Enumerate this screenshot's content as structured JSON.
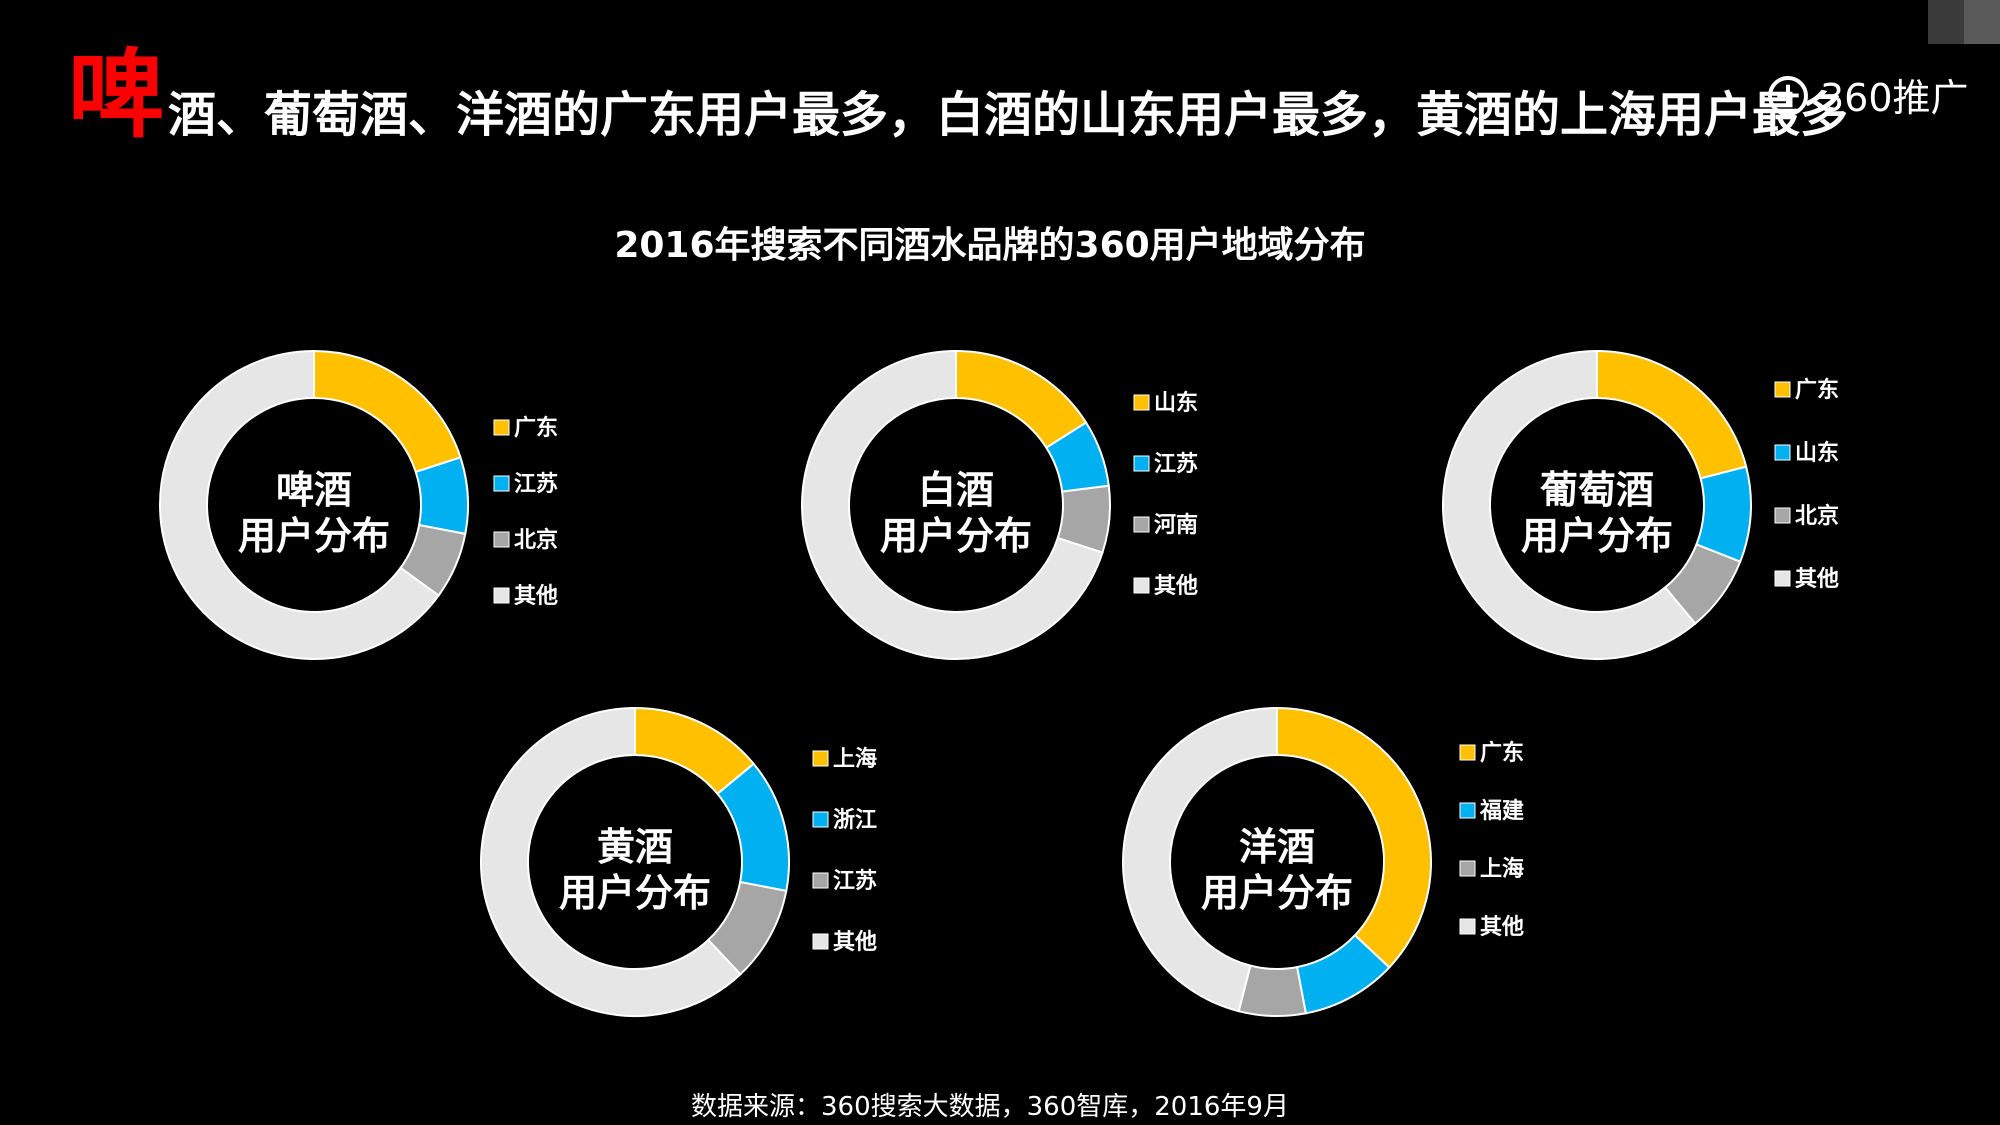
{
  "headline": {
    "first_char": "啤",
    "rest": "酒、葡萄酒、洋酒的广东用户最多，白酒的山东用户最多，黄酒的上海用户最多"
  },
  "logo": {
    "text": "360推广",
    "icon": "plus-circle-icon"
  },
  "subtitle": "2016年搜索不同酒水品牌的360用户地域分布",
  "source": "数据来源：360搜索大数据，360智库，2016年9月",
  "colors": {
    "yellow": "#ffc000",
    "blue": "#00b0f0",
    "gray": "#a6a6a6",
    "light": "#e6e6e6",
    "headline_red": "#ff0000"
  },
  "chart_data": [
    {
      "type": "pie",
      "center_label": [
        "啤酒",
        "用户分布"
      ],
      "categories": [
        "广东",
        "江苏",
        "北京",
        "其他"
      ],
      "values": [
        20,
        8,
        7,
        65
      ]
    },
    {
      "type": "pie",
      "center_label": [
        "白酒",
        "用户分布"
      ],
      "categories": [
        "山东",
        "江苏",
        "河南",
        "其他"
      ],
      "values": [
        16,
        7,
        7,
        70
      ]
    },
    {
      "type": "pie",
      "center_label": [
        "葡萄酒",
        "用户分布"
      ],
      "categories": [
        "广东",
        "山东",
        "北京",
        "其他"
      ],
      "values": [
        21,
        10,
        8,
        61
      ]
    },
    {
      "type": "pie",
      "center_label": [
        "黄酒",
        "用户分布"
      ],
      "categories": [
        "上海",
        "浙江",
        "江苏",
        "其他"
      ],
      "values": [
        14,
        14,
        10,
        62
      ]
    },
    {
      "type": "pie",
      "center_label": [
        "洋酒",
        "用户分布"
      ],
      "categories": [
        "广东",
        "福建",
        "上海",
        "其他"
      ],
      "values": [
        37,
        10,
        7,
        46
      ]
    }
  ]
}
